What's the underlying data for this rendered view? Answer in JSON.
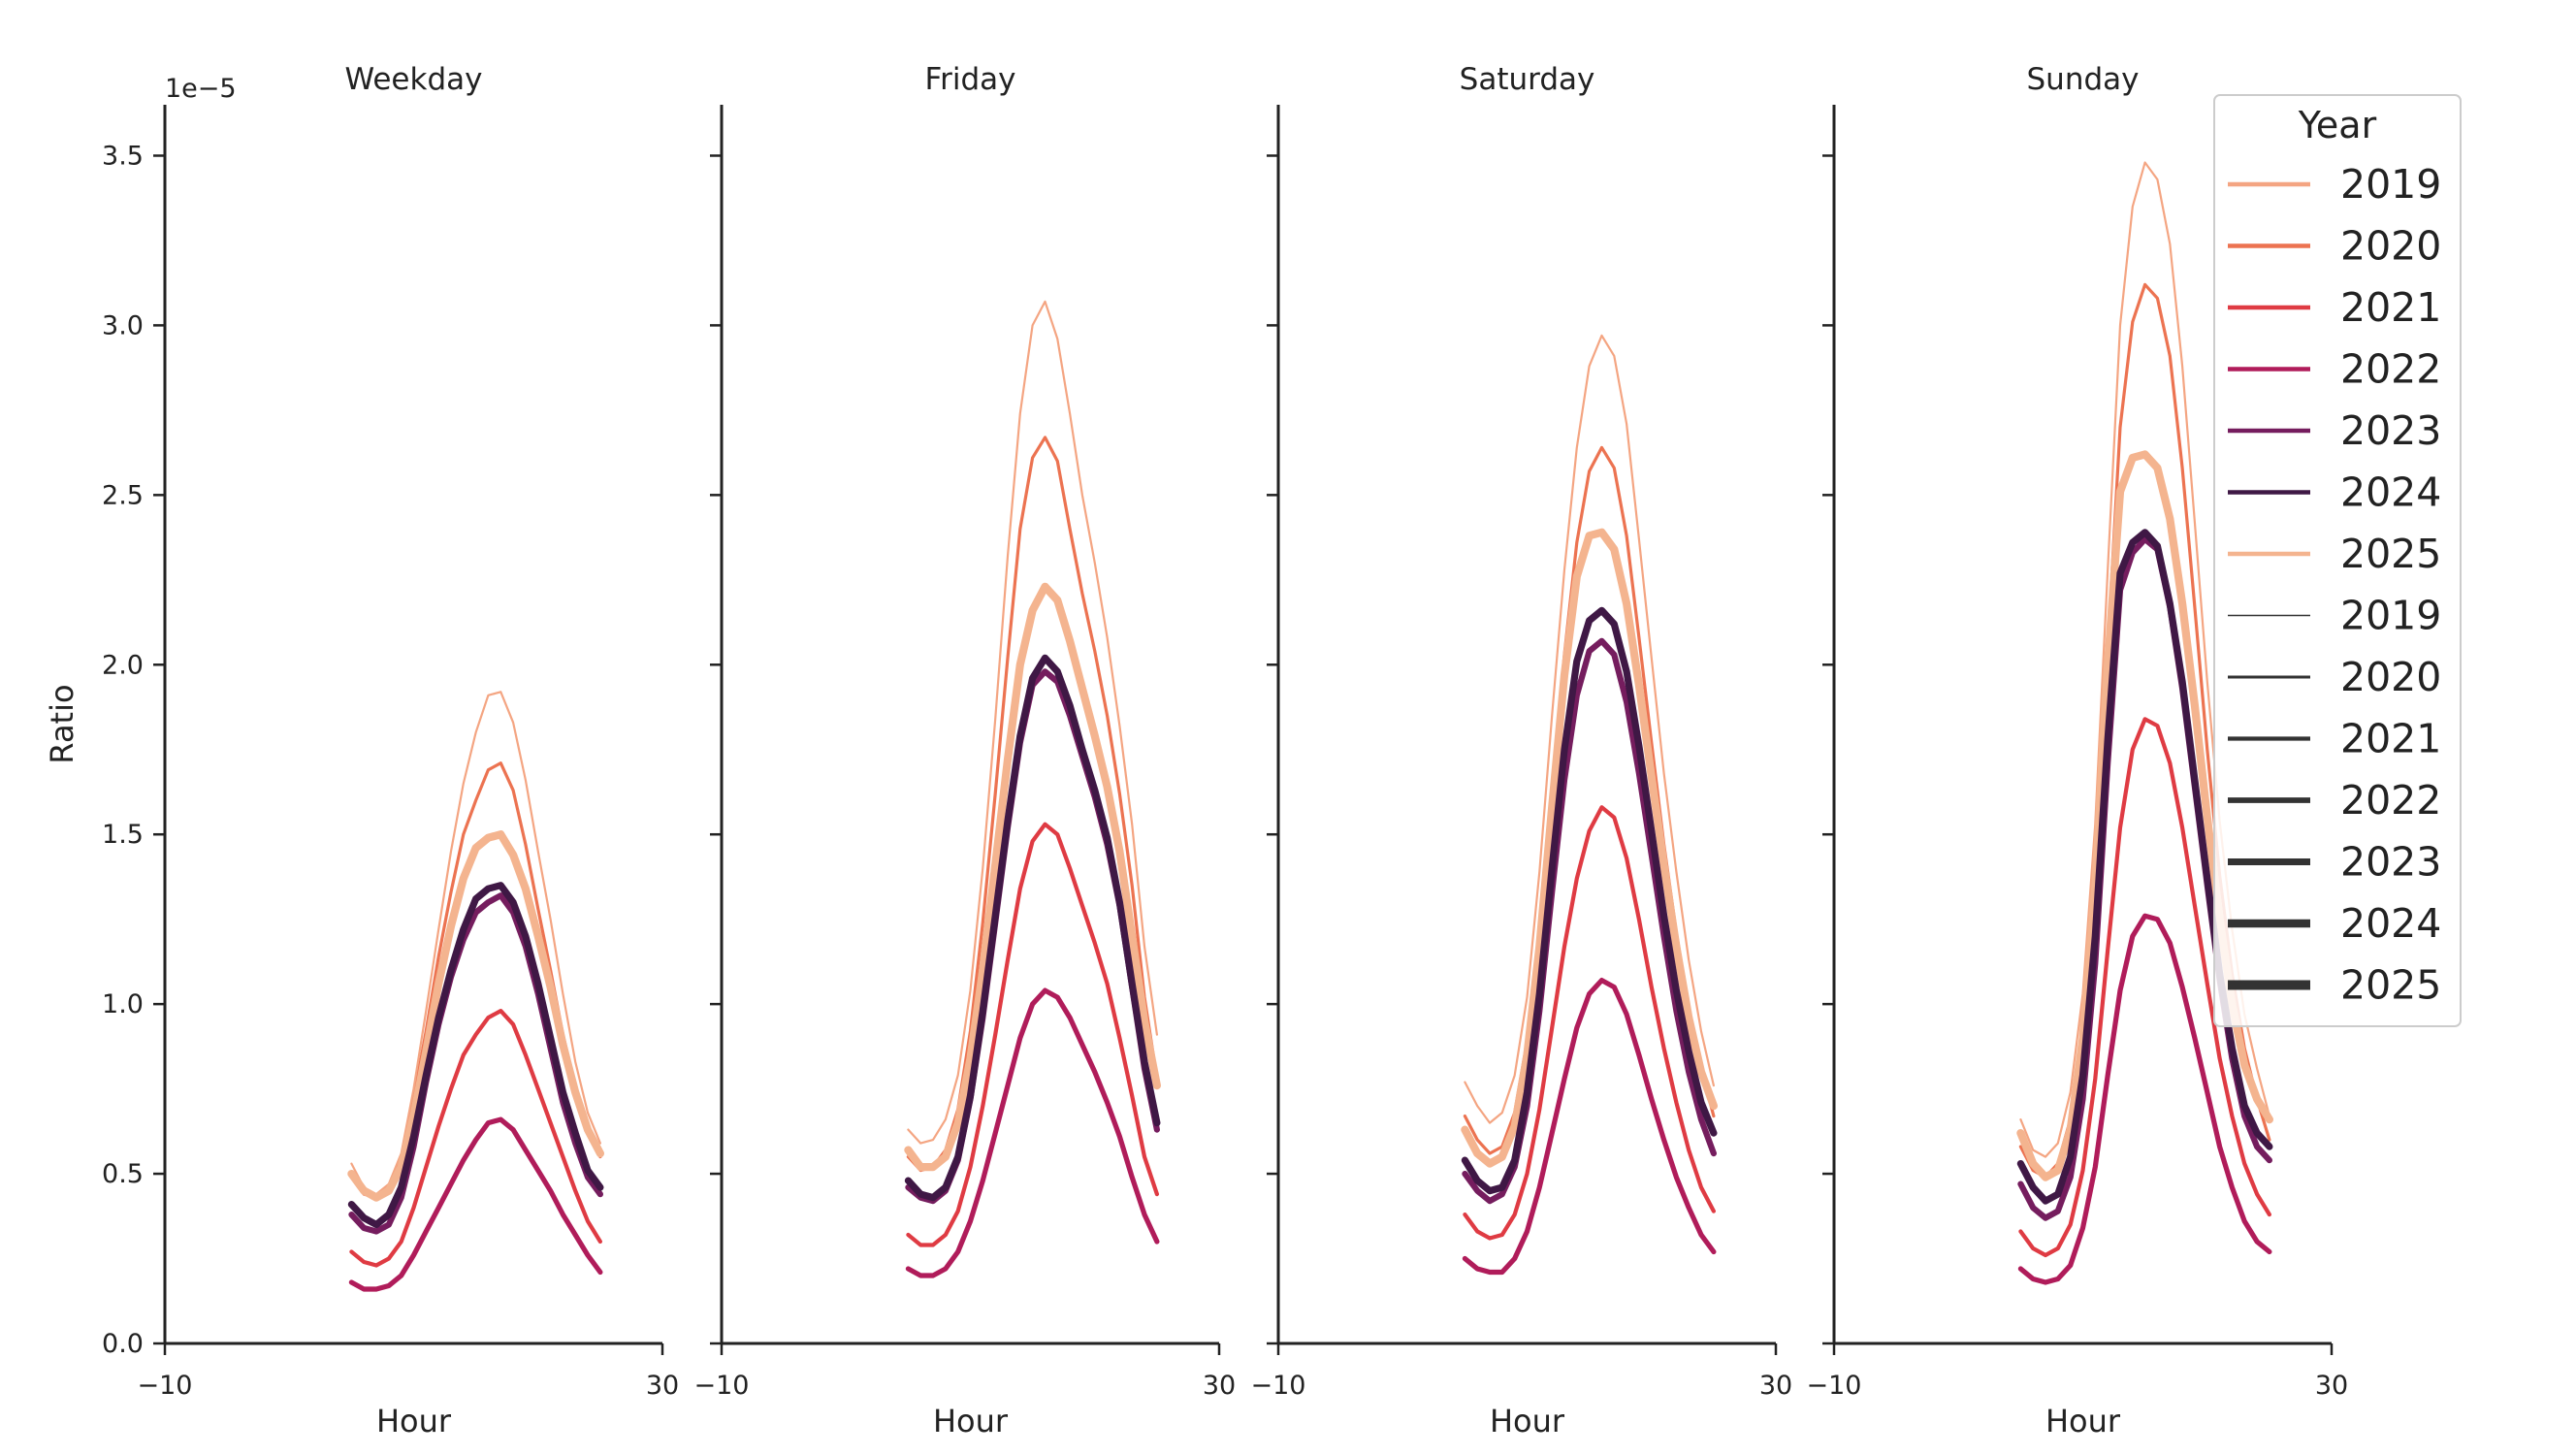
{
  "chart_data": {
    "type": "line",
    "x_hours": [
      5,
      6,
      7,
      8,
      9,
      10,
      11,
      12,
      13,
      14,
      15,
      16,
      17,
      18,
      19,
      20,
      21,
      22,
      23,
      24,
      25
    ],
    "xlim": [
      -10,
      30
    ],
    "xticks": [
      "−10",
      "30"
    ],
    "ylim": [
      0,
      3.65
    ],
    "yticks": [
      "0.0",
      "0.5",
      "1.0",
      "1.5",
      "2.0",
      "2.5",
      "3.0",
      "3.5"
    ],
    "y_offset_label": "1e−5",
    "ylabel": "Ratio",
    "xlabel": "Hour",
    "legend": {
      "title": "Year",
      "position": "top-right",
      "hue_entries": [
        "2019",
        "2020",
        "2021",
        "2022",
        "2023",
        "2024",
        "2025"
      ],
      "size_entries": [
        "2019",
        "2020",
        "2021",
        "2022",
        "2023",
        "2024",
        "2025"
      ]
    },
    "colors": {
      "2019": "#f4a582",
      "2020": "#ec7351",
      "2021": "#df3b43",
      "2022": "#b01c5a",
      "2023": "#751d5e",
      "2024": "#3f1845",
      "2025": "#f4b48f"
    },
    "panels": [
      {
        "title": "Weekday",
        "series": [
          {
            "name": "2019",
            "values": [
              0.53,
              0.46,
              0.44,
              0.47,
              0.56,
              0.75,
              0.98,
              1.22,
              1.45,
              1.65,
              1.8,
              1.91,
              1.92,
              1.83,
              1.66,
              1.45,
              1.25,
              1.03,
              0.83,
              0.68,
              0.59
            ]
          },
          {
            "name": "2020",
            "values": [
              0.49,
              0.44,
              0.43,
              0.46,
              0.55,
              0.72,
              0.92,
              1.14,
              1.33,
              1.5,
              1.6,
              1.69,
              1.71,
              1.63,
              1.47,
              1.28,
              1.1,
              0.91,
              0.76,
              0.63,
              0.55
            ]
          },
          {
            "name": "2021",
            "values": [
              0.27,
              0.24,
              0.23,
              0.25,
              0.3,
              0.4,
              0.52,
              0.64,
              0.75,
              0.85,
              0.91,
              0.96,
              0.98,
              0.94,
              0.85,
              0.75,
              0.65,
              0.55,
              0.45,
              0.36,
              0.3
            ]
          },
          {
            "name": "2022",
            "values": [
              0.18,
              0.16,
              0.16,
              0.17,
              0.2,
              0.26,
              0.33,
              0.4,
              0.47,
              0.54,
              0.6,
              0.65,
              0.66,
              0.63,
              0.57,
              0.51,
              0.45,
              0.38,
              0.32,
              0.26,
              0.21
            ]
          },
          {
            "name": "2023",
            "values": [
              0.38,
              0.34,
              0.33,
              0.35,
              0.43,
              0.58,
              0.77,
              0.94,
              1.08,
              1.19,
              1.27,
              1.3,
              1.32,
              1.27,
              1.17,
              1.03,
              0.87,
              0.71,
              0.59,
              0.49,
              0.44
            ]
          },
          {
            "name": "2024",
            "values": [
              0.41,
              0.37,
              0.35,
              0.38,
              0.46,
              0.61,
              0.79,
              0.96,
              1.1,
              1.22,
              1.31,
              1.34,
              1.35,
              1.3,
              1.2,
              1.06,
              0.9,
              0.74,
              0.62,
              0.51,
              0.46
            ]
          },
          {
            "name": "2025",
            "values": [
              0.5,
              0.45,
              0.43,
              0.45,
              0.52,
              0.67,
              0.86,
              1.06,
              1.23,
              1.37,
              1.46,
              1.49,
              1.5,
              1.44,
              1.34,
              1.2,
              1.05,
              0.88,
              0.74,
              0.63,
              0.56
            ]
          }
        ]
      },
      {
        "title": "Friday",
        "series": [
          {
            "name": "2019",
            "values": [
              0.63,
              0.59,
              0.6,
              0.66,
              0.79,
              1.04,
              1.4,
              1.84,
              2.32,
              2.74,
              3.0,
              3.07,
              2.96,
              2.74,
              2.5,
              2.3,
              2.08,
              1.82,
              1.53,
              1.17,
              0.91
            ]
          },
          {
            "name": "2020",
            "values": [
              0.55,
              0.51,
              0.52,
              0.57,
              0.69,
              0.92,
              1.24,
              1.62,
              2.02,
              2.4,
              2.61,
              2.67,
              2.6,
              2.4,
              2.21,
              2.04,
              1.85,
              1.62,
              1.35,
              1.02,
              0.78
            ]
          },
          {
            "name": "2021",
            "values": [
              0.32,
              0.29,
              0.29,
              0.32,
              0.39,
              0.52,
              0.7,
              0.91,
              1.13,
              1.34,
              1.48,
              1.53,
              1.5,
              1.4,
              1.29,
              1.18,
              1.06,
              0.9,
              0.73,
              0.55,
              0.44
            ]
          },
          {
            "name": "2022",
            "values": [
              0.22,
              0.2,
              0.2,
              0.22,
              0.27,
              0.36,
              0.48,
              0.62,
              0.76,
              0.9,
              1.0,
              1.04,
              1.02,
              0.96,
              0.88,
              0.8,
              0.71,
              0.61,
              0.49,
              0.38,
              0.3
            ]
          },
          {
            "name": "2023",
            "values": [
              0.46,
              0.43,
              0.42,
              0.45,
              0.54,
              0.72,
              0.96,
              1.24,
              1.52,
              1.77,
              1.94,
              1.98,
              1.95,
              1.85,
              1.73,
              1.61,
              1.47,
              1.29,
              1.05,
              0.81,
              0.63
            ]
          },
          {
            "name": "2024",
            "values": [
              0.48,
              0.44,
              0.43,
              0.46,
              0.55,
              0.73,
              0.98,
              1.26,
              1.54,
              1.79,
              1.96,
              2.02,
              1.98,
              1.88,
              1.75,
              1.63,
              1.49,
              1.3,
              1.06,
              0.83,
              0.65
            ]
          },
          {
            "name": "2025",
            "values": [
              0.57,
              0.52,
              0.52,
              0.55,
              0.65,
              0.84,
              1.1,
              1.41,
              1.72,
              2.0,
              2.16,
              2.23,
              2.19,
              2.07,
              1.93,
              1.79,
              1.64,
              1.45,
              1.2,
              0.95,
              0.76
            ]
          }
        ]
      },
      {
        "title": "Saturday",
        "series": [
          {
            "name": "2019",
            "values": [
              0.77,
              0.7,
              0.65,
              0.68,
              0.79,
              1.02,
              1.39,
              1.85,
              2.28,
              2.64,
              2.88,
              2.97,
              2.91,
              2.71,
              2.37,
              2.02,
              1.68,
              1.39,
              1.13,
              0.92,
              0.76
            ]
          },
          {
            "name": "2020",
            "values": [
              0.67,
              0.6,
              0.56,
              0.58,
              0.68,
              0.89,
              1.21,
              1.63,
              2.03,
              2.36,
              2.57,
              2.64,
              2.58,
              2.38,
              2.08,
              1.77,
              1.47,
              1.21,
              0.99,
              0.81,
              0.67
            ]
          },
          {
            "name": "2021",
            "values": [
              0.38,
              0.33,
              0.31,
              0.32,
              0.38,
              0.5,
              0.69,
              0.93,
              1.17,
              1.37,
              1.51,
              1.58,
              1.55,
              1.43,
              1.25,
              1.05,
              0.87,
              0.71,
              0.57,
              0.46,
              0.39
            ]
          },
          {
            "name": "2022",
            "values": [
              0.25,
              0.22,
              0.21,
              0.21,
              0.25,
              0.33,
              0.46,
              0.62,
              0.78,
              0.93,
              1.03,
              1.07,
              1.05,
              0.97,
              0.85,
              0.72,
              0.6,
              0.49,
              0.4,
              0.32,
              0.27
            ]
          },
          {
            "name": "2023",
            "values": [
              0.5,
              0.45,
              0.42,
              0.44,
              0.52,
              0.7,
              0.98,
              1.33,
              1.66,
              1.91,
              2.04,
              2.07,
              2.03,
              1.89,
              1.68,
              1.44,
              1.2,
              0.98,
              0.8,
              0.66,
              0.56
            ]
          },
          {
            "name": "2024",
            "values": [
              0.54,
              0.48,
              0.45,
              0.46,
              0.54,
              0.74,
              1.03,
              1.4,
              1.75,
              2.01,
              2.13,
              2.16,
              2.12,
              1.98,
              1.76,
              1.51,
              1.26,
              1.04,
              0.86,
              0.71,
              0.62
            ]
          },
          {
            "name": "2025",
            "values": [
              0.63,
              0.56,
              0.53,
              0.55,
              0.64,
              0.85,
              1.17,
              1.58,
              1.97,
              2.26,
              2.38,
              2.39,
              2.34,
              2.18,
              1.94,
              1.67,
              1.41,
              1.17,
              0.96,
              0.8,
              0.7
            ]
          }
        ]
      },
      {
        "title": "Sunday",
        "series": [
          {
            "name": "2019",
            "values": [
              0.66,
              0.57,
              0.55,
              0.59,
              0.74,
              1.03,
              1.53,
              2.28,
              3.0,
              3.35,
              3.48,
              3.43,
              3.24,
              2.88,
              2.42,
              1.95,
              1.54,
              1.22,
              0.97,
              0.81,
              0.67
            ]
          },
          {
            "name": "2020",
            "values": [
              0.58,
              0.51,
              0.49,
              0.53,
              0.66,
              0.92,
              1.37,
              2.05,
              2.7,
              3.01,
              3.12,
              3.08,
              2.91,
              2.58,
              2.17,
              1.75,
              1.38,
              1.09,
              0.87,
              0.72,
              0.6
            ]
          },
          {
            "name": "2021",
            "values": [
              0.33,
              0.28,
              0.26,
              0.28,
              0.35,
              0.51,
              0.78,
              1.16,
              1.52,
              1.75,
              1.84,
              1.82,
              1.71,
              1.52,
              1.29,
              1.06,
              0.84,
              0.67,
              0.53,
              0.44,
              0.38
            ]
          },
          {
            "name": "2022",
            "values": [
              0.22,
              0.19,
              0.18,
              0.19,
              0.23,
              0.34,
              0.52,
              0.79,
              1.04,
              1.2,
              1.26,
              1.25,
              1.18,
              1.05,
              0.9,
              0.74,
              0.58,
              0.46,
              0.36,
              0.3,
              0.27
            ]
          },
          {
            "name": "2023",
            "values": [
              0.47,
              0.4,
              0.37,
              0.39,
              0.49,
              0.72,
              1.12,
              1.71,
              2.22,
              2.33,
              2.37,
              2.34,
              2.17,
              1.93,
              1.64,
              1.35,
              1.07,
              0.84,
              0.67,
              0.58,
              0.54
            ]
          },
          {
            "name": "2024",
            "values": [
              0.53,
              0.46,
              0.42,
              0.44,
              0.55,
              0.79,
              1.2,
              1.78,
              2.27,
              2.36,
              2.39,
              2.35,
              2.18,
              1.95,
              1.66,
              1.37,
              1.09,
              0.87,
              0.7,
              0.62,
              0.58
            ]
          },
          {
            "name": "2025",
            "values": [
              0.62,
              0.53,
              0.49,
              0.51,
              0.63,
              0.9,
              1.35,
              2.0,
              2.51,
              2.61,
              2.62,
              2.58,
              2.43,
              2.18,
              1.88,
              1.55,
              1.25,
              1.0,
              0.82,
              0.72,
              0.66
            ]
          }
        ]
      }
    ]
  }
}
